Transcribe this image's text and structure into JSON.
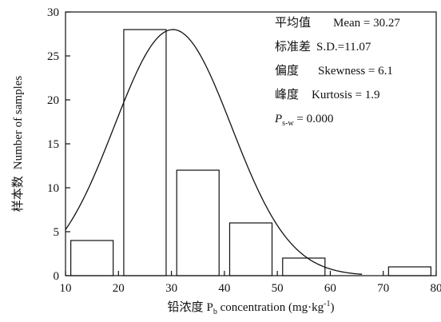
{
  "chart_data": {
    "type": "bar",
    "title": "",
    "xlabel": {
      "cn": "铅浓度",
      "p": "P",
      "p_sub": "b",
      "rest": " concentration (mg·kg",
      "sup": "-1",
      "close": ")"
    },
    "ylabel": {
      "cn": "样本数",
      "en": "Number of samples"
    },
    "xlim": [
      10,
      80
    ],
    "ylim": [
      0,
      30
    ],
    "xticks": [
      "10",
      "20",
      "30",
      "40",
      "50",
      "60",
      "70",
      "80"
    ],
    "yticks": [
      "0",
      "5",
      "10",
      "15",
      "20",
      "25",
      "30"
    ],
    "bins": [
      {
        "x0": 11,
        "x1": 19,
        "value": 4
      },
      {
        "x0": 21,
        "x1": 29,
        "value": 28
      },
      {
        "x0": 31,
        "x1": 39,
        "value": 12
      },
      {
        "x0": 41,
        "x1": 49,
        "value": 6
      },
      {
        "x0": 51,
        "x1": 59,
        "value": 2
      },
      {
        "x0": 61,
        "x1": 69,
        "value": 0
      },
      {
        "x0": 71,
        "x1": 79,
        "value": 1
      }
    ],
    "curve": {
      "type": "normal-fit",
      "mean": 30.27,
      "sd": 11.07,
      "peak": 28
    },
    "grid": false,
    "legend": "none"
  },
  "stats": {
    "mean": {
      "cn": "平均值",
      "en": "Mean = 30.27"
    },
    "sd": {
      "cn": "标准差",
      "en": "S.D.=11.07"
    },
    "skew": {
      "cn": "偏度",
      "en": "Skewness = 6.1"
    },
    "kurt": {
      "cn": "峰度",
      "en": "Kurtosis = 1.9"
    },
    "p": {
      "p": "P",
      "sub": "s-w",
      "en": " = 0.000"
    }
  }
}
